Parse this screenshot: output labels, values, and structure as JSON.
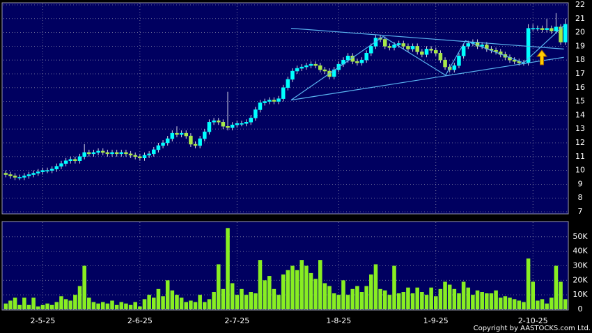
{
  "chart_data": {
    "type": "candlestick",
    "categories": [
      null,
      null,
      null,
      null,
      null,
      null,
      null,
      null,
      "2-5-25",
      null,
      null,
      null,
      null,
      null,
      null,
      null,
      null,
      null,
      null,
      null,
      null,
      null,
      null,
      null,
      null,
      null,
      null,
      null,
      null,
      "2-6-25",
      null,
      null,
      null,
      null,
      null,
      null,
      null,
      null,
      null,
      null,
      null,
      null,
      null,
      null,
      null,
      null,
      null,
      null,
      null,
      null,
      "2-7-25",
      null,
      null,
      null,
      null,
      null,
      null,
      null,
      null,
      null,
      null,
      null,
      null,
      null,
      null,
      null,
      null,
      null,
      null,
      null,
      null,
      null,
      "1-8-25",
      null,
      null,
      null,
      null,
      null,
      null,
      null,
      null,
      null,
      null,
      null,
      null,
      null,
      null,
      null,
      null,
      null,
      null,
      null,
      null,
      "1-9-25",
      null,
      null,
      null,
      null,
      null,
      null,
      null,
      null,
      null,
      null,
      null,
      null,
      null,
      null,
      null,
      null,
      null,
      null,
      null,
      null,
      "2-10-25",
      null,
      null,
      null,
      null,
      null,
      null,
      null
    ],
    "open": [
      9.8,
      9.7,
      9.6,
      9.5,
      9.5,
      9.6,
      9.7,
      9.8,
      9.9,
      10.0,
      10.0,
      10.1,
      10.3,
      10.5,
      10.7,
      10.8,
      10.7,
      11.0,
      11.3,
      11.2,
      11.3,
      11.4,
      11.3,
      11.2,
      11.3,
      11.2,
      11.3,
      11.2,
      11.1,
      11.0,
      10.9,
      11.1,
      11.2,
      11.5,
      11.8,
      12.0,
      12.3,
      12.7,
      12.6,
      12.7,
      12.5,
      11.9,
      11.8,
      12.3,
      12.8,
      13.5,
      13.6,
      13.5,
      13.2,
      13.1,
      13.3,
      13.4,
      13.4,
      13.5,
      13.8,
      14.4,
      14.9,
      15.0,
      15.1,
      15.0,
      15.2,
      16.0,
      16.6,
      17.2,
      17.4,
      17.5,
      17.6,
      17.7,
      17.6,
      17.3,
      17.2,
      16.8,
      17.3,
      17.7,
      18.0,
      18.3,
      17.9,
      17.8,
      18.0,
      18.5,
      19.0,
      19.6,
      19.5,
      19.0,
      18.9,
      19.1,
      19.2,
      19.0,
      18.8,
      19.0,
      18.6,
      18.4,
      18.8,
      18.7,
      18.5,
      18.0,
      17.5,
      17.3,
      17.6,
      18.3,
      19.0,
      19.2,
      19.3,
      19.0,
      19.1,
      18.8,
      18.7,
      18.6,
      18.4,
      18.2,
      18.0,
      17.9,
      17.8,
      17.8,
      20.3,
      20.3,
      20.3,
      20.2,
      20.3,
      20.1,
      20.4,
      19.3
    ],
    "high": [
      10.0,
      9.9,
      9.8,
      9.7,
      9.8,
      9.9,
      10.0,
      10.1,
      10.2,
      10.2,
      10.3,
      10.5,
      10.7,
      10.9,
      11.0,
      11.0,
      11.2,
      11.9,
      11.5,
      11.5,
      11.6,
      11.6,
      11.5,
      11.5,
      11.5,
      11.5,
      11.5,
      11.4,
      11.3,
      11.2,
      11.3,
      11.4,
      11.7,
      12.0,
      12.2,
      12.5,
      12.9,
      13.2,
      12.9,
      12.9,
      12.7,
      12.1,
      12.5,
      13.0,
      13.7,
      13.8,
      13.8,
      13.7,
      15.7,
      13.5,
      13.6,
      13.6,
      13.7,
      14.0,
      14.6,
      15.1,
      15.2,
      15.3,
      15.3,
      15.4,
      16.2,
      16.8,
      17.4,
      17.6,
      17.7,
      17.8,
      17.9,
      17.9,
      17.8,
      17.5,
      17.4,
      17.5,
      17.9,
      18.2,
      18.5,
      18.5,
      18.1,
      18.2,
      18.7,
      19.2,
      19.8,
      19.8,
      19.7,
      19.2,
      19.3,
      19.4,
      19.4,
      19.2,
      19.2,
      19.2,
      18.8,
      19.0,
      19.0,
      18.9,
      18.7,
      18.2,
      17.7,
      17.8,
      18.5,
      19.2,
      19.4,
      19.5,
      19.5,
      19.3,
      19.3,
      19.0,
      18.9,
      18.8,
      18.6,
      18.4,
      18.2,
      18.1,
      18.0,
      20.6,
      20.6,
      20.5,
      20.5,
      21.0,
      20.5,
      21.4,
      20.6,
      21.0
    ],
    "low": [
      9.5,
      9.4,
      9.3,
      9.3,
      9.3,
      9.4,
      9.5,
      9.6,
      9.7,
      9.8,
      9.8,
      9.9,
      10.1,
      10.3,
      10.5,
      10.5,
      10.5,
      10.8,
      11.0,
      11.0,
      11.1,
      11.1,
      11.0,
      11.0,
      11.0,
      11.0,
      11.0,
      10.9,
      10.8,
      10.7,
      10.7,
      10.9,
      11.0,
      11.3,
      11.6,
      11.8,
      12.1,
      12.4,
      12.4,
      12.3,
      11.7,
      11.6,
      11.6,
      12.1,
      12.6,
      13.3,
      13.3,
      13.0,
      12.9,
      12.9,
      13.1,
      13.2,
      13.2,
      13.3,
      13.6,
      14.2,
      14.7,
      14.8,
      14.8,
      14.8,
      15.0,
      15.8,
      16.4,
      17.0,
      17.2,
      17.3,
      17.4,
      17.4,
      17.1,
      17.0,
      16.6,
      16.6,
      17.1,
      17.5,
      17.8,
      17.7,
      17.6,
      17.6,
      17.8,
      18.3,
      18.8,
      19.3,
      18.8,
      18.7,
      18.7,
      18.9,
      18.8,
      18.6,
      18.6,
      18.4,
      18.2,
      18.2,
      18.5,
      18.3,
      17.8,
      17.3,
      17.1,
      17.1,
      17.4,
      18.1,
      18.8,
      19.0,
      18.8,
      18.8,
      18.6,
      18.5,
      18.4,
      18.2,
      18.0,
      17.8,
      17.7,
      17.6,
      17.6,
      17.6,
      20.1,
      20.1,
      20.0,
      20.0,
      19.9,
      19.9,
      19.1,
      19.1
    ],
    "close": [
      9.7,
      9.6,
      9.5,
      9.5,
      9.6,
      9.7,
      9.8,
      9.9,
      10.0,
      10.0,
      10.1,
      10.3,
      10.5,
      10.7,
      10.8,
      10.7,
      11.0,
      11.3,
      11.2,
      11.3,
      11.4,
      11.3,
      11.2,
      11.3,
      11.2,
      11.3,
      11.2,
      11.1,
      11.0,
      10.9,
      11.1,
      11.2,
      11.5,
      11.8,
      12.0,
      12.3,
      12.7,
      12.6,
      12.7,
      12.5,
      11.9,
      11.8,
      12.3,
      12.8,
      13.5,
      13.6,
      13.5,
      13.2,
      13.1,
      13.3,
      13.4,
      13.4,
      13.5,
      13.8,
      14.4,
      14.9,
      15.0,
      15.1,
      15.0,
      15.2,
      16.0,
      16.6,
      17.2,
      17.4,
      17.5,
      17.6,
      17.7,
      17.6,
      17.3,
      17.2,
      16.8,
      17.3,
      17.7,
      18.0,
      18.3,
      17.9,
      17.8,
      18.0,
      18.5,
      19.0,
      19.6,
      19.5,
      19.0,
      18.9,
      19.1,
      19.2,
      19.0,
      18.8,
      19.0,
      18.6,
      18.4,
      18.8,
      18.7,
      18.5,
      18.0,
      17.5,
      17.3,
      17.6,
      18.3,
      19.0,
      19.2,
      19.3,
      19.0,
      19.1,
      18.8,
      18.7,
      18.6,
      18.4,
      18.2,
      18.0,
      17.9,
      17.8,
      17.8,
      20.3,
      20.3,
      20.3,
      20.2,
      20.3,
      20.1,
      20.4,
      19.3,
      20.6
    ],
    "up_color": "#00ffff",
    "down_color": "#a8e84a",
    "ylim": [
      6.9,
      22.1
    ],
    "yticks": [
      7,
      8,
      9,
      10,
      11,
      12,
      13,
      14,
      15,
      16,
      17,
      18,
      19,
      20,
      21,
      22
    ],
    "grid": true,
    "trendlines": [
      {
        "x": [
          61.7,
          120.7
        ],
        "y": [
          20.3,
          18.8
        ]
      },
      {
        "x": [
          61.7,
          120.7
        ],
        "y": [
          15.1,
          18.2
        ]
      },
      {
        "x": [
          61.7,
          81.6,
          95.1,
          99.4,
          112,
          120.7
        ],
        "y": [
          15.1,
          19.7,
          16.9,
          19.4,
          17.8,
          20.5
        ]
      }
    ],
    "trendline_color": "#5ab4f0",
    "volume": {
      "values": [
        4000,
        6000,
        8000,
        3000,
        8000,
        3000,
        8000,
        2000,
        3000,
        4000,
        3000,
        5000,
        9000,
        7000,
        6000,
        10000,
        16000,
        30000,
        8000,
        5000,
        4000,
        5000,
        4000,
        6000,
        3000,
        5000,
        4000,
        3000,
        5000,
        2000,
        7000,
        10000,
        8000,
        14000,
        9000,
        20000,
        13000,
        10000,
        8000,
        5000,
        6000,
        5000,
        10000,
        5000,
        7000,
        12000,
        31000,
        14000,
        56000,
        18000,
        10000,
        14000,
        10000,
        12000,
        11000,
        34000,
        20000,
        23000,
        14000,
        10000,
        24000,
        27000,
        30000,
        27000,
        34000,
        30000,
        25000,
        21000,
        34000,
        18000,
        16000,
        11000,
        10000,
        20000,
        10000,
        14000,
        16000,
        12000,
        16000,
        24000,
        31000,
        14000,
        13000,
        10000,
        30000,
        11000,
        12000,
        15000,
        11000,
        15000,
        12000,
        10000,
        15000,
        9000,
        14000,
        19000,
        17000,
        14000,
        11000,
        19000,
        15000,
        10000,
        13000,
        12000,
        11000,
        11000,
        13000,
        8000,
        9000,
        8000,
        7000,
        6000,
        5000,
        35000,
        19000,
        6000,
        7000,
        4000,
        8000,
        30000,
        19000,
        7000
      ],
      "color": "#88ee22",
      "ylim": [
        0,
        60000
      ],
      "yticks": [
        0,
        {
          "value": 10000,
          "label": "10K"
        },
        {
          "value": 20000,
          "label": "20K"
        },
        {
          "value": 30000,
          "label": "30K"
        },
        {
          "value": 40000,
          "label": "40K"
        },
        {
          "value": 50000,
          "label": "50K"
        }
      ]
    },
    "copyright": "Copyright by AASTOCKS.com Ltd."
  }
}
